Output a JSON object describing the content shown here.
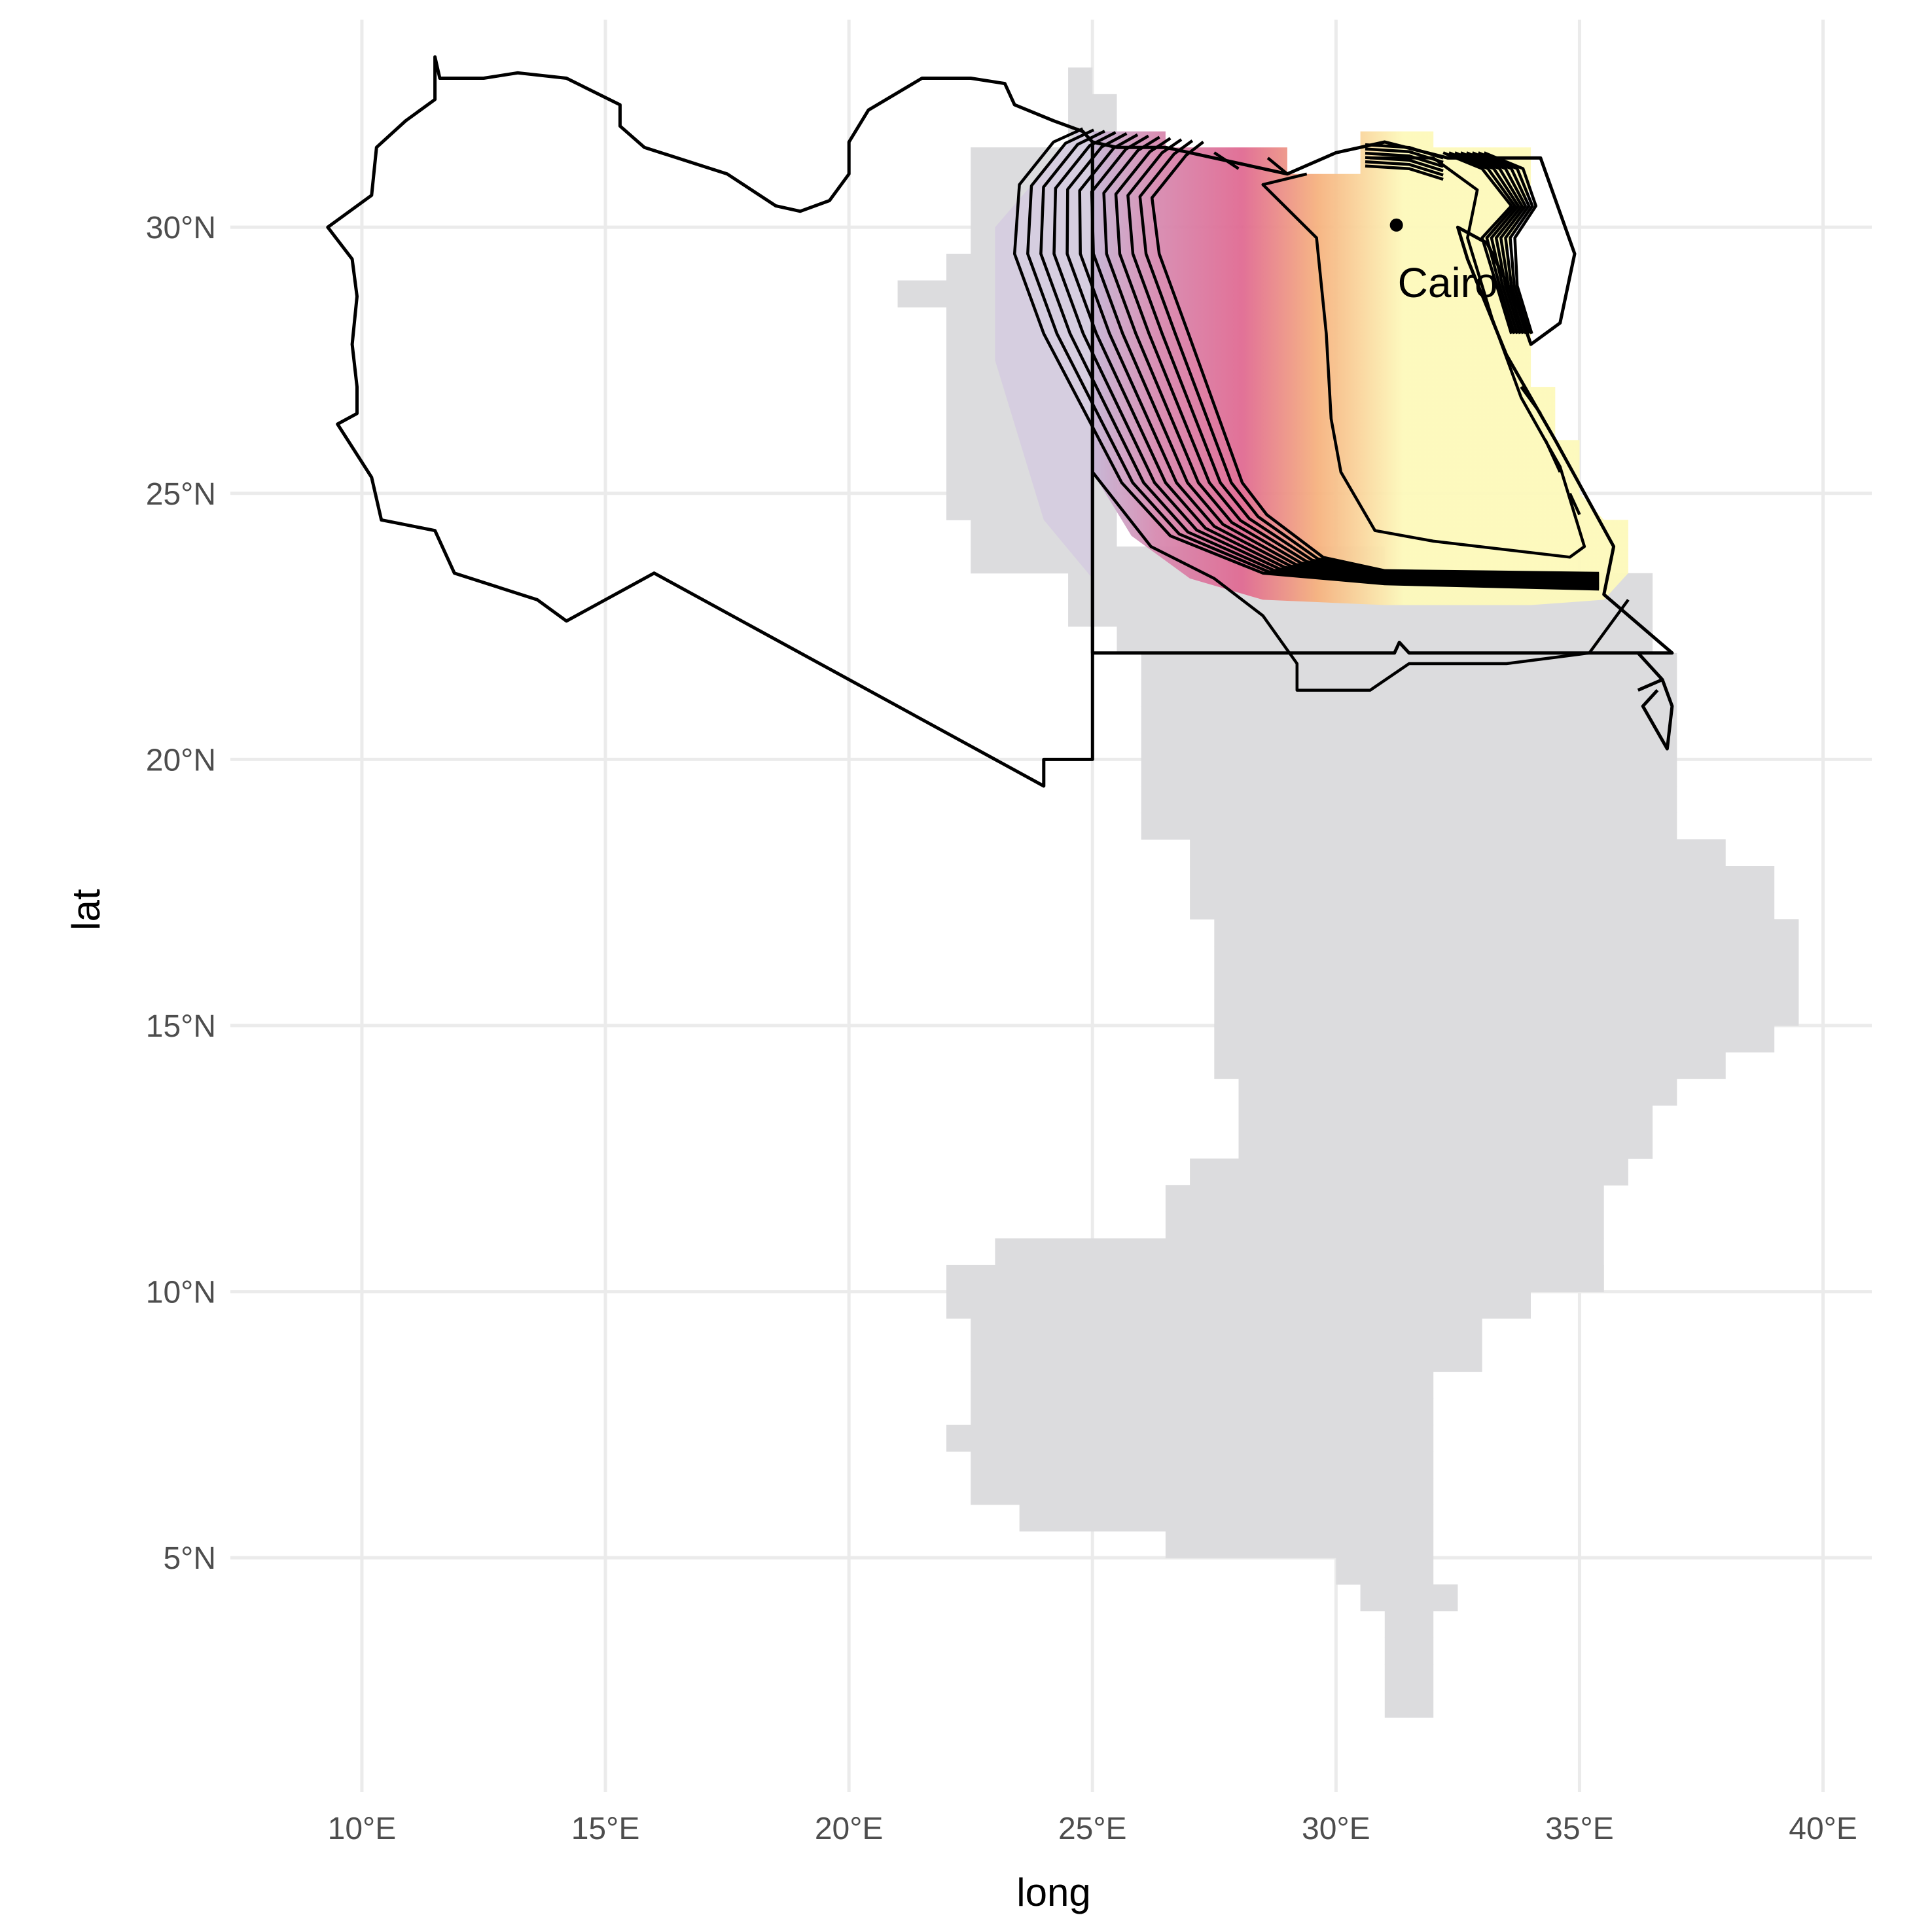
{
  "chart_data": {
    "type": "map",
    "x_axis": {
      "label": "long",
      "ticks": [
        {
          "value": 10,
          "label": "10°E"
        },
        {
          "value": 15,
          "label": "15°E"
        },
        {
          "value": 20,
          "label": "20°E"
        },
        {
          "value": 25,
          "label": "25°E"
        },
        {
          "value": 30,
          "label": "30°E"
        },
        {
          "value": 35,
          "label": "35°E"
        },
        {
          "value": 40,
          "label": "40°E"
        }
      ],
      "range": [
        7.3,
        41.0
      ]
    },
    "y_axis": {
      "label": "lat",
      "ticks": [
        {
          "value": 5,
          "label": "5°N"
        },
        {
          "value": 10,
          "label": "10°N"
        },
        {
          "value": 15,
          "label": "15°N"
        },
        {
          "value": 20,
          "label": "20°N"
        },
        {
          "value": 25,
          "label": "25°N"
        },
        {
          "value": 30,
          "label": "30°N"
        }
      ],
      "range": [
        0.6,
        33.9
      ]
    },
    "grid": true,
    "cities": [
      {
        "name": "Cairo",
        "lon": 31.24,
        "lat": 30.04
      }
    ],
    "colors": {
      "background_raster": "#dcdcde",
      "density_low": "#c7b7d6",
      "density_mid": "#e06a92",
      "density_high": "#fdf9bb"
    }
  }
}
